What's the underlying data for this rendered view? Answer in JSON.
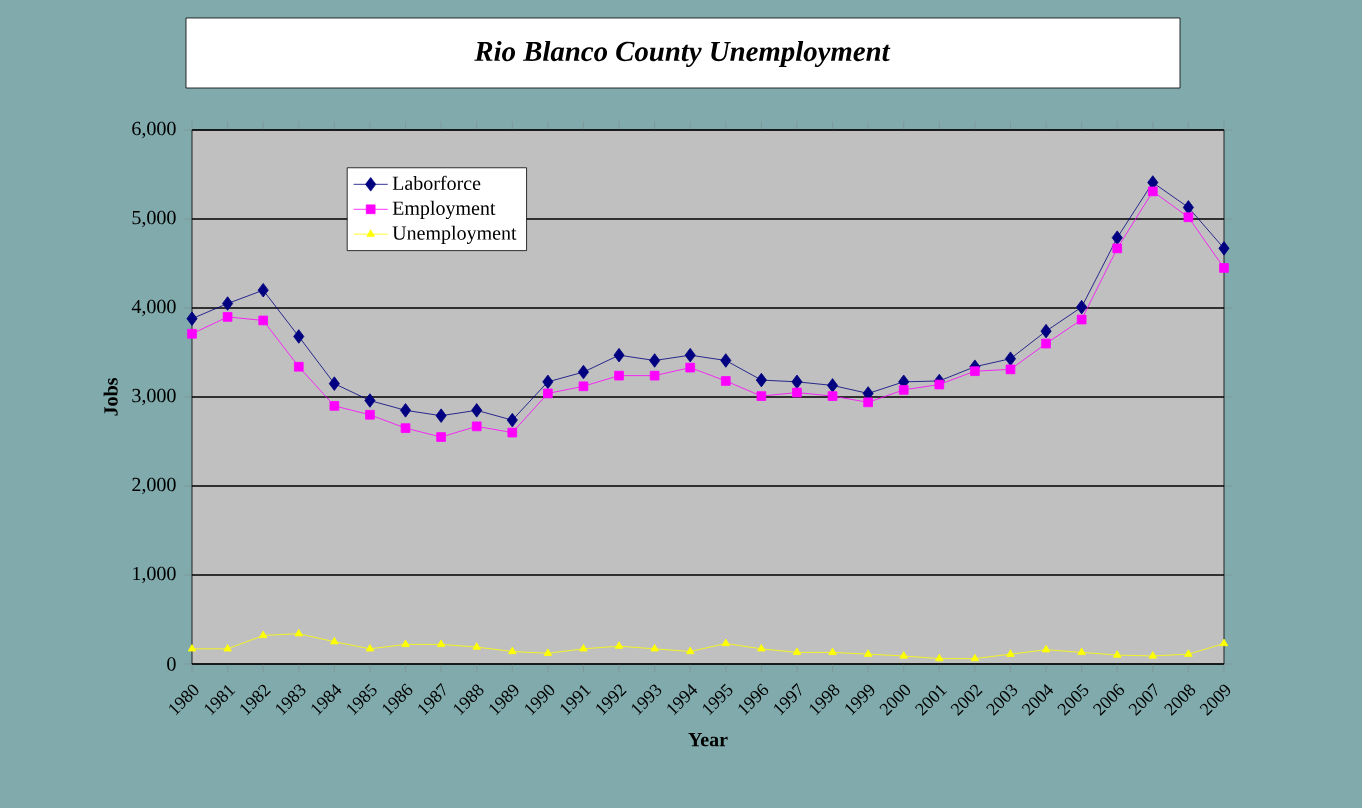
{
  "chart_data": {
    "type": "line",
    "title": "Rio Blanco County Unemployment",
    "xlabel": "Year",
    "ylabel": "Jobs",
    "categories": [
      "1980",
      "1981",
      "1982",
      "1983",
      "1984",
      "1985",
      "1986",
      "1987",
      "1988",
      "1989",
      "1990",
      "1991",
      "1992",
      "1993",
      "1994",
      "1995",
      "1996",
      "1997",
      "1998",
      "1999",
      "2000",
      "2001",
      "2002",
      "2003",
      "2004",
      "2005",
      "2006",
      "2007",
      "2008",
      "2009"
    ],
    "series": [
      {
        "name": "Laborforce",
        "color": "#000080",
        "marker": "diamond",
        "values": [
          3880,
          4050,
          4200,
          3680,
          3150,
          2960,
          2850,
          2790,
          2850,
          2740,
          3170,
          3280,
          3470,
          3410,
          3470,
          3410,
          3190,
          3170,
          3130,
          3040,
          3170,
          3180,
          3340,
          3430,
          3740,
          4010,
          4790,
          5410,
          5130,
          4670
        ]
      },
      {
        "name": "Employment",
        "color": "#ff00ff",
        "marker": "square",
        "values": [
          3710,
          3900,
          3860,
          3340,
          2900,
          2800,
          2650,
          2550,
          2670,
          2600,
          3040,
          3120,
          3240,
          3240,
          3330,
          3180,
          3010,
          3050,
          3010,
          2940,
          3080,
          3140,
          3290,
          3310,
          3600,
          3870,
          4670,
          5310,
          5020,
          4450
        ]
      },
      {
        "name": "Unemployment",
        "color": "#ffff00",
        "marker": "triangle",
        "values": [
          170,
          170,
          320,
          340,
          250,
          170,
          220,
          220,
          190,
          140,
          120,
          170,
          200,
          170,
          140,
          230,
          170,
          130,
          130,
          110,
          90,
          60,
          60,
          110,
          160,
          130,
          100,
          90,
          110,
          230
        ]
      }
    ],
    "ylim": [
      0,
      6000
    ],
    "yticks": [
      {
        "value": 0,
        "label": "0"
      },
      {
        "value": 1000,
        "label": "1,000"
      },
      {
        "value": 2000,
        "label": "2,000"
      },
      {
        "value": 3000,
        "label": "3,000"
      },
      {
        "value": 4000,
        "label": "4,000"
      },
      {
        "value": 5000,
        "label": "5,000"
      },
      {
        "value": 6000,
        "label": "6,000"
      }
    ],
    "grid": "y",
    "legend": "top left",
    "line_style": "solid"
  }
}
